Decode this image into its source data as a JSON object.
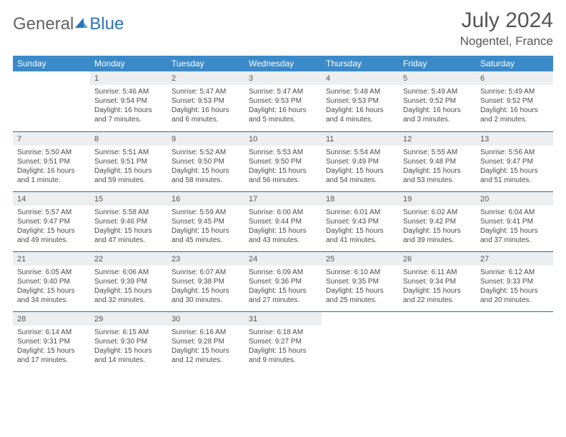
{
  "logo": {
    "part1": "General",
    "part2": "Blue"
  },
  "title": {
    "month": "July 2024",
    "location": "Nogentel, France"
  },
  "weekdays": [
    "Sunday",
    "Monday",
    "Tuesday",
    "Wednesday",
    "Thursday",
    "Friday",
    "Saturday"
  ],
  "colors": {
    "header_bg": "#3b8bca",
    "header_text": "#ffffff",
    "row_rule": "#2a6aa3",
    "daynum_bg": "#eceeef",
    "text": "#4a4a4a",
    "logo_gray": "#636363",
    "logo_blue": "#2a74b8"
  },
  "weeks": [
    [
      {
        "n": "",
        "sunrise": "",
        "sunset": "",
        "daylight": ""
      },
      {
        "n": "1",
        "sunrise": "Sunrise: 5:46 AM",
        "sunset": "Sunset: 9:54 PM",
        "daylight": "Daylight: 16 hours and 7 minutes."
      },
      {
        "n": "2",
        "sunrise": "Sunrise: 5:47 AM",
        "sunset": "Sunset: 9:53 PM",
        "daylight": "Daylight: 16 hours and 6 minutes."
      },
      {
        "n": "3",
        "sunrise": "Sunrise: 5:47 AM",
        "sunset": "Sunset: 9:53 PM",
        "daylight": "Daylight: 16 hours and 5 minutes."
      },
      {
        "n": "4",
        "sunrise": "Sunrise: 5:48 AM",
        "sunset": "Sunset: 9:53 PM",
        "daylight": "Daylight: 16 hours and 4 minutes."
      },
      {
        "n": "5",
        "sunrise": "Sunrise: 5:49 AM",
        "sunset": "Sunset: 9:52 PM",
        "daylight": "Daylight: 16 hours and 3 minutes."
      },
      {
        "n": "6",
        "sunrise": "Sunrise: 5:49 AM",
        "sunset": "Sunset: 9:52 PM",
        "daylight": "Daylight: 16 hours and 2 minutes."
      }
    ],
    [
      {
        "n": "7",
        "sunrise": "Sunrise: 5:50 AM",
        "sunset": "Sunset: 9:51 PM",
        "daylight": "Daylight: 16 hours and 1 minute."
      },
      {
        "n": "8",
        "sunrise": "Sunrise: 5:51 AM",
        "sunset": "Sunset: 9:51 PM",
        "daylight": "Daylight: 15 hours and 59 minutes."
      },
      {
        "n": "9",
        "sunrise": "Sunrise: 5:52 AM",
        "sunset": "Sunset: 9:50 PM",
        "daylight": "Daylight: 15 hours and 58 minutes."
      },
      {
        "n": "10",
        "sunrise": "Sunrise: 5:53 AM",
        "sunset": "Sunset: 9:50 PM",
        "daylight": "Daylight: 15 hours and 56 minutes."
      },
      {
        "n": "11",
        "sunrise": "Sunrise: 5:54 AM",
        "sunset": "Sunset: 9:49 PM",
        "daylight": "Daylight: 15 hours and 54 minutes."
      },
      {
        "n": "12",
        "sunrise": "Sunrise: 5:55 AM",
        "sunset": "Sunset: 9:48 PM",
        "daylight": "Daylight: 15 hours and 53 minutes."
      },
      {
        "n": "13",
        "sunrise": "Sunrise: 5:56 AM",
        "sunset": "Sunset: 9:47 PM",
        "daylight": "Daylight: 15 hours and 51 minutes."
      }
    ],
    [
      {
        "n": "14",
        "sunrise": "Sunrise: 5:57 AM",
        "sunset": "Sunset: 9:47 PM",
        "daylight": "Daylight: 15 hours and 49 minutes."
      },
      {
        "n": "15",
        "sunrise": "Sunrise: 5:58 AM",
        "sunset": "Sunset: 9:46 PM",
        "daylight": "Daylight: 15 hours and 47 minutes."
      },
      {
        "n": "16",
        "sunrise": "Sunrise: 5:59 AM",
        "sunset": "Sunset: 9:45 PM",
        "daylight": "Daylight: 15 hours and 45 minutes."
      },
      {
        "n": "17",
        "sunrise": "Sunrise: 6:00 AM",
        "sunset": "Sunset: 9:44 PM",
        "daylight": "Daylight: 15 hours and 43 minutes."
      },
      {
        "n": "18",
        "sunrise": "Sunrise: 6:01 AM",
        "sunset": "Sunset: 9:43 PM",
        "daylight": "Daylight: 15 hours and 41 minutes."
      },
      {
        "n": "19",
        "sunrise": "Sunrise: 6:02 AM",
        "sunset": "Sunset: 9:42 PM",
        "daylight": "Daylight: 15 hours and 39 minutes."
      },
      {
        "n": "20",
        "sunrise": "Sunrise: 6:04 AM",
        "sunset": "Sunset: 9:41 PM",
        "daylight": "Daylight: 15 hours and 37 minutes."
      }
    ],
    [
      {
        "n": "21",
        "sunrise": "Sunrise: 6:05 AM",
        "sunset": "Sunset: 9:40 PM",
        "daylight": "Daylight: 15 hours and 34 minutes."
      },
      {
        "n": "22",
        "sunrise": "Sunrise: 6:06 AM",
        "sunset": "Sunset: 9:39 PM",
        "daylight": "Daylight: 15 hours and 32 minutes."
      },
      {
        "n": "23",
        "sunrise": "Sunrise: 6:07 AM",
        "sunset": "Sunset: 9:38 PM",
        "daylight": "Daylight: 15 hours and 30 minutes."
      },
      {
        "n": "24",
        "sunrise": "Sunrise: 6:09 AM",
        "sunset": "Sunset: 9:36 PM",
        "daylight": "Daylight: 15 hours and 27 minutes."
      },
      {
        "n": "25",
        "sunrise": "Sunrise: 6:10 AM",
        "sunset": "Sunset: 9:35 PM",
        "daylight": "Daylight: 15 hours and 25 minutes."
      },
      {
        "n": "26",
        "sunrise": "Sunrise: 6:11 AM",
        "sunset": "Sunset: 9:34 PM",
        "daylight": "Daylight: 15 hours and 22 minutes."
      },
      {
        "n": "27",
        "sunrise": "Sunrise: 6:12 AM",
        "sunset": "Sunset: 9:33 PM",
        "daylight": "Daylight: 15 hours and 20 minutes."
      }
    ],
    [
      {
        "n": "28",
        "sunrise": "Sunrise: 6:14 AM",
        "sunset": "Sunset: 9:31 PM",
        "daylight": "Daylight: 15 hours and 17 minutes."
      },
      {
        "n": "29",
        "sunrise": "Sunrise: 6:15 AM",
        "sunset": "Sunset: 9:30 PM",
        "daylight": "Daylight: 15 hours and 14 minutes."
      },
      {
        "n": "30",
        "sunrise": "Sunrise: 6:16 AM",
        "sunset": "Sunset: 9:28 PM",
        "daylight": "Daylight: 15 hours and 12 minutes."
      },
      {
        "n": "31",
        "sunrise": "Sunrise: 6:18 AM",
        "sunset": "Sunset: 9:27 PM",
        "daylight": "Daylight: 15 hours and 9 minutes."
      },
      {
        "n": "",
        "sunrise": "",
        "sunset": "",
        "daylight": ""
      },
      {
        "n": "",
        "sunrise": "",
        "sunset": "",
        "daylight": ""
      },
      {
        "n": "",
        "sunrise": "",
        "sunset": "",
        "daylight": ""
      }
    ]
  ]
}
